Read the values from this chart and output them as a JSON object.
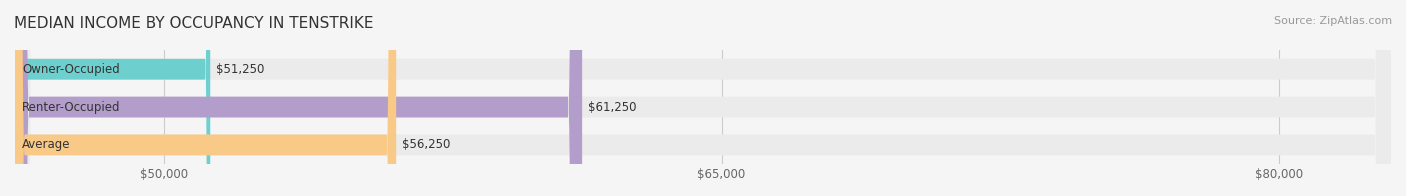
{
  "title": "MEDIAN INCOME BY OCCUPANCY IN TENSTRIKE",
  "source": "Source: ZipAtlas.com",
  "categories": [
    "Owner-Occupied",
    "Renter-Occupied",
    "Average"
  ],
  "values": [
    51250,
    61250,
    56250
  ],
  "value_labels": [
    "$51,250",
    "$61,250",
    "$56,250"
  ],
  "bar_colors": [
    "#6ecfcf",
    "#b39dca",
    "#f9c987"
  ],
  "track_color": "#e8e8e8",
  "xmin": 46000,
  "xmax": 83000,
  "xticks": [
    50000,
    65000,
    80000
  ],
  "xticklabels": [
    "$50,000",
    "$65,000",
    "$80,000"
  ],
  "background_color": "#f5f5f5",
  "bar_background": "#ebebeb",
  "title_fontsize": 11,
  "source_fontsize": 8,
  "bar_height": 0.55,
  "label_fontsize": 8.5,
  "value_fontsize": 8.5
}
